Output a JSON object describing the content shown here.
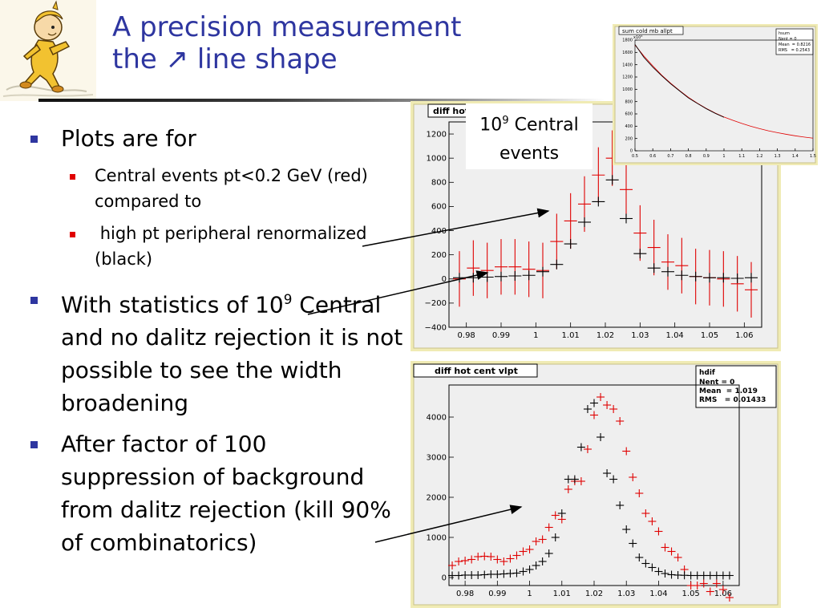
{
  "slide": {
    "title_line1": "A precision measurement",
    "title_line2": "the ↗ line shape"
  },
  "bullets": {
    "b1": "Plots are for",
    "b1_sub1": "Central events pt<0.2 GeV (red) compared to",
    "b1_sub2": " high pt peripheral renormalized (black)",
    "b2_pre": "With statistics of 10",
    "b2_sup": "9",
    "b2_post": " Central and no dalitz rejection it is not possible to see the width broadening",
    "b3": "After factor of 100 suppression of background from dalitz rejection (kill 90% of combinatorics)"
  },
  "callout": {
    "base": "10",
    "exp": "9",
    "line1_rest": " Central",
    "line2": "events"
  },
  "colors": {
    "title": "#2e36a0",
    "panel_frame": "#f0ebb4",
    "plot_bg": "#efefef",
    "red_series": "#e00000",
    "black_series": "#000000"
  },
  "mascot": {
    "icon": "running-cartoon-character-icon"
  },
  "chart_data": [
    {
      "type": "scatter",
      "panel_title": "diff hot",
      "xlim": [
        0.975,
        1.065
      ],
      "ylim": [
        -400,
        1300
      ],
      "xticks": [
        "0.98",
        "0.99",
        "1",
        "1.01",
        "1.02",
        "1.03",
        "1.04",
        "1.05",
        "1.06"
      ],
      "yticks": [
        "−400",
        "−200",
        "0",
        "200",
        "400",
        "600",
        "800",
        "1000",
        "1200"
      ],
      "series": [
        {
          "color": "#e00000",
          "x": [
            0.978,
            0.982,
            0.986,
            0.99,
            0.994,
            0.998,
            1.002,
            1.006,
            1.01,
            1.014,
            1.018,
            1.022,
            1.026,
            1.03,
            1.034,
            1.038,
            1.042,
            1.046,
            1.05,
            1.054,
            1.058,
            1.062
          ],
          "y": [
            0,
            90,
            70,
            100,
            100,
            80,
            70,
            310,
            480,
            620,
            860,
            1000,
            740,
            380,
            260,
            140,
            110,
            20,
            10,
            0,
            -40,
            -90
          ],
          "err": [
            230,
            230,
            230,
            230,
            230,
            230,
            230,
            230,
            230,
            230,
            230,
            230,
            230,
            230,
            230,
            230,
            230,
            230,
            230,
            230,
            230,
            230
          ]
        },
        {
          "color": "#000000",
          "x": [
            0.978,
            0.982,
            0.986,
            0.99,
            0.994,
            0.998,
            1.002,
            1.006,
            1.01,
            1.014,
            1.018,
            1.022,
            1.026,
            1.03,
            1.034,
            1.038,
            1.042,
            1.046,
            1.05,
            1.054,
            1.058,
            1.062
          ],
          "y": [
            10,
            10,
            15,
            20,
            25,
            30,
            60,
            120,
            290,
            470,
            640,
            820,
            500,
            210,
            90,
            60,
            30,
            20,
            10,
            10,
            5,
            10
          ]
        }
      ]
    },
    {
      "type": "scatter",
      "panel_title": "diff hot cent vlpt",
      "stats": {
        "name": "hdif",
        "lines": [
          "Nent = 0",
          "Mean  = 1.019",
          "RMS   = 0.01433"
        ]
      },
      "xlim": [
        0.975,
        1.065
      ],
      "ylim": [
        -200,
        4800
      ],
      "xticks": [
        "0.98",
        "0.99",
        "1",
        "1.01",
        "1.02",
        "1.03",
        "1.04",
        "1.05",
        "1.06"
      ],
      "yticks": [
        "0",
        "1000",
        "2000",
        "3000",
        "4000"
      ],
      "series": [
        {
          "color": "#e00000",
          "x": [
            0.976,
            0.978,
            0.98,
            0.982,
            0.984,
            0.986,
            0.988,
            0.99,
            0.992,
            0.994,
            0.996,
            0.998,
            1.0,
            1.002,
            1.004,
            1.006,
            1.008,
            1.01,
            1.012,
            1.014,
            1.016,
            1.018,
            1.02,
            1.022,
            1.024,
            1.026,
            1.028,
            1.03,
            1.032,
            1.034,
            1.036,
            1.038,
            1.04,
            1.042,
            1.044,
            1.046,
            1.048,
            1.05,
            1.052,
            1.054,
            1.056,
            1.058,
            1.06,
            1.062
          ],
          "y": [
            300,
            400,
            420,
            450,
            520,
            530,
            520,
            450,
            400,
            470,
            550,
            650,
            700,
            900,
            950,
            1250,
            1550,
            1450,
            2200,
            2400,
            2400,
            3200,
            4050,
            4500,
            4300,
            4200,
            3900,
            3150,
            2500,
            2100,
            1600,
            1400,
            1150,
            750,
            650,
            500,
            200,
            -200,
            -200,
            -150,
            -350,
            -150,
            -300,
            -500
          ]
        },
        {
          "color": "#000000",
          "x": [
            0.976,
            0.978,
            0.98,
            0.982,
            0.984,
            0.986,
            0.988,
            0.99,
            0.992,
            0.994,
            0.996,
            0.998,
            1.0,
            1.002,
            1.004,
            1.006,
            1.008,
            1.01,
            1.012,
            1.014,
            1.016,
            1.018,
            1.02,
            1.022,
            1.024,
            1.026,
            1.028,
            1.03,
            1.032,
            1.034,
            1.036,
            1.038,
            1.04,
            1.042,
            1.044,
            1.046,
            1.048,
            1.05,
            1.052,
            1.054,
            1.056,
            1.058,
            1.06,
            1.062
          ],
          "y": [
            50,
            50,
            60,
            60,
            60,
            70,
            80,
            80,
            90,
            100,
            110,
            150,
            200,
            300,
            400,
            600,
            1000,
            1600,
            2450,
            2450,
            3250,
            4200,
            4350,
            3500,
            2600,
            2450,
            1800,
            1200,
            850,
            500,
            350,
            250,
            150,
            100,
            70,
            60,
            55,
            50,
            50,
            50,
            50,
            50,
            50,
            50
          ]
        }
      ]
    },
    {
      "type": "line",
      "panel_title": "sum cold mb allpt",
      "stats": {
        "name": "hsum",
        "lines": [
          "Nent = 0",
          "Mean  = 0.8216",
          "RMS   = 0.2543"
        ]
      },
      "y_multiplier": "x10³",
      "xlim": [
        0.5,
        1.5
      ],
      "ylim": [
        0,
        1800
      ],
      "xticks": [
        "0.5",
        "0.6",
        "0.7",
        "0.8",
        "0.9",
        "1",
        "1.1",
        "1.2",
        "1.3",
        "1.4",
        "1.5"
      ],
      "yticks": [
        "0",
        "200",
        "400",
        "600",
        "800",
        "1000",
        "1200",
        "1400",
        "1600",
        "1800"
      ],
      "series": [
        {
          "color": "#e00000",
          "x": [
            0.5,
            0.55,
            0.6,
            0.65,
            0.7,
            0.75,
            0.8,
            0.85,
            0.9,
            0.95,
            1.0,
            1.05,
            1.1,
            1.15,
            1.2,
            1.25,
            1.3,
            1.35,
            1.4,
            1.45,
            1.5
          ],
          "y": [
            1720,
            1540,
            1380,
            1230,
            1100,
            980,
            870,
            775,
            690,
            615,
            550,
            495,
            445,
            400,
            360,
            325,
            295,
            268,
            244,
            223,
            205
          ]
        },
        {
          "color": "#000000",
          "x": [
            0.5,
            0.55,
            0.6,
            0.65,
            0.7,
            0.75,
            0.8,
            0.85,
            0.9,
            0.95,
            1.0
          ],
          "y": [
            1730,
            1520,
            1360,
            1220,
            1090,
            975,
            860,
            770,
            685,
            610,
            545
          ]
        }
      ]
    }
  ]
}
